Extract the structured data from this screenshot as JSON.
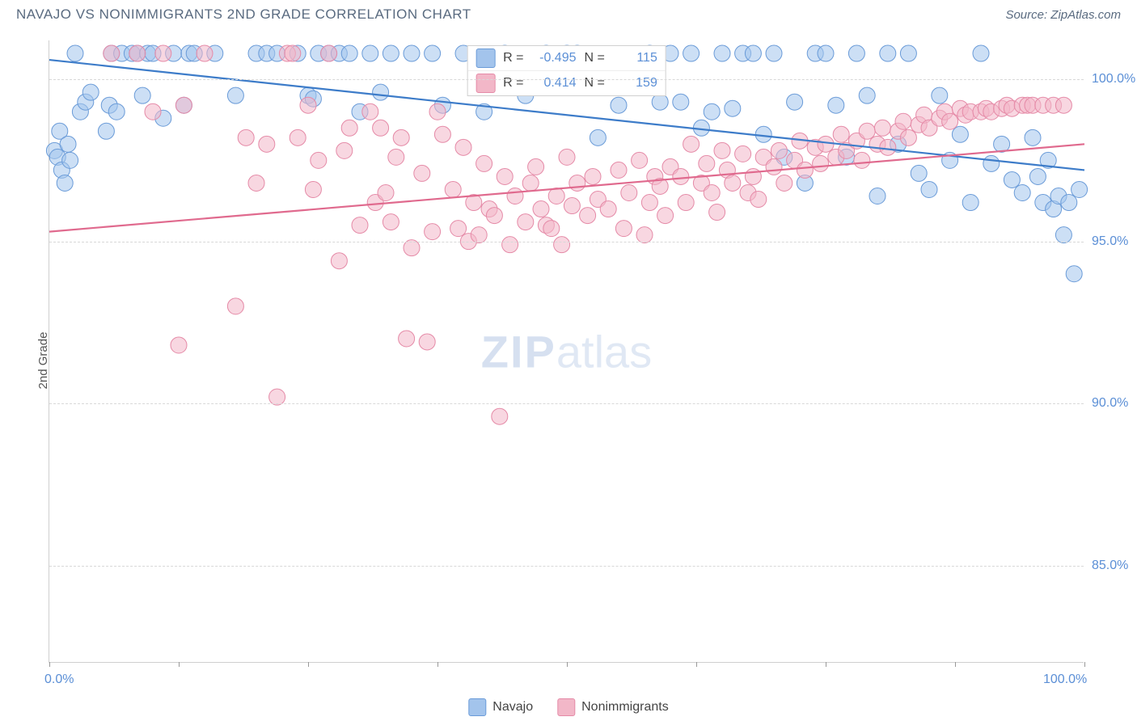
{
  "title": "NAVAJO VS NONIMMIGRANTS 2ND GRADE CORRELATION CHART",
  "source_label": "Source: ZipAtlas.com",
  "ylabel": "2nd Grade",
  "watermark_zip": "ZIP",
  "watermark_atlas": "atlas",
  "xlim": [
    0,
    100
  ],
  "xlim_labels": [
    "0.0%",
    "100.0%"
  ],
  "ylim": [
    82,
    101.2
  ],
  "yticks": [
    85,
    90,
    95,
    100
  ],
  "ytick_labels": [
    "85.0%",
    "90.0%",
    "95.0%",
    "100.0%"
  ],
  "xtick_positions": [
    0,
    12.5,
    25,
    37.5,
    50,
    62.5,
    75,
    87.5,
    100
  ],
  "grid_color": "#d8d8d8",
  "axis_color": "#cfcfcf",
  "background_color": "#ffffff",
  "marker_radius": 10,
  "marker_opacity": 0.55,
  "line_width": 2.2,
  "series": [
    {
      "name": "Navajo",
      "color_fill": "#a3c4ec",
      "color_stroke": "#6a9bd8",
      "color_line": "#3d7cc9",
      "R": "-0.495",
      "N": "115",
      "trend": {
        "x1": 0,
        "y1": 100.6,
        "x2": 100,
        "y2": 97.2
      },
      "points": [
        [
          0.5,
          97.8
        ],
        [
          0.8,
          97.6
        ],
        [
          1.0,
          98.4
        ],
        [
          1.2,
          97.2
        ],
        [
          1.5,
          96.8
        ],
        [
          1.8,
          98.0
        ],
        [
          2.0,
          97.5
        ],
        [
          2.5,
          100.8
        ],
        [
          3.0,
          99.0
        ],
        [
          3.5,
          99.3
        ],
        [
          4.0,
          99.6
        ],
        [
          5.5,
          98.4
        ],
        [
          5.8,
          99.2
        ],
        [
          6.0,
          100.8
        ],
        [
          6.5,
          99.0
        ],
        [
          7.0,
          100.8
        ],
        [
          8.0,
          100.8
        ],
        [
          8.5,
          100.8
        ],
        [
          9.0,
          99.5
        ],
        [
          9.5,
          100.8
        ],
        [
          10.0,
          100.8
        ],
        [
          11.0,
          98.8
        ],
        [
          12.0,
          100.8
        ],
        [
          13.0,
          99.2
        ],
        [
          13.5,
          100.8
        ],
        [
          14.0,
          100.8
        ],
        [
          16.0,
          100.8
        ],
        [
          18.0,
          99.5
        ],
        [
          20.0,
          100.8
        ],
        [
          21.0,
          100.8
        ],
        [
          22.0,
          100.8
        ],
        [
          24.0,
          100.8
        ],
        [
          25.0,
          99.5
        ],
        [
          25.5,
          99.4
        ],
        [
          26.0,
          100.8
        ],
        [
          27.0,
          100.8
        ],
        [
          28.0,
          100.8
        ],
        [
          29.0,
          100.8
        ],
        [
          30.0,
          99.0
        ],
        [
          31.0,
          100.8
        ],
        [
          32.0,
          99.6
        ],
        [
          33.0,
          100.8
        ],
        [
          35.0,
          100.8
        ],
        [
          37.0,
          100.8
        ],
        [
          38.0,
          99.2
        ],
        [
          40.0,
          100.8
        ],
        [
          42.0,
          99.0
        ],
        [
          44.0,
          100.8
        ],
        [
          46.0,
          99.5
        ],
        [
          48.0,
          100.8
        ],
        [
          50.0,
          100.8
        ],
        [
          51.0,
          100.8
        ],
        [
          53.0,
          98.2
        ],
        [
          55.0,
          99.2
        ],
        [
          58.0,
          100.8
        ],
        [
          59.0,
          99.3
        ],
        [
          60.0,
          100.8
        ],
        [
          61.0,
          99.3
        ],
        [
          62.0,
          100.8
        ],
        [
          63.0,
          98.5
        ],
        [
          64.0,
          99.0
        ],
        [
          65.0,
          100.8
        ],
        [
          66.0,
          99.1
        ],
        [
          67.0,
          100.8
        ],
        [
          68.0,
          100.8
        ],
        [
          69.0,
          98.3
        ],
        [
          70.0,
          100.8
        ],
        [
          71.0,
          97.6
        ],
        [
          72.0,
          99.3
        ],
        [
          73.0,
          96.8
        ],
        [
          74.0,
          100.8
        ],
        [
          75.0,
          100.8
        ],
        [
          76.0,
          99.2
        ],
        [
          77.0,
          97.6
        ],
        [
          78.0,
          100.8
        ],
        [
          79.0,
          99.5
        ],
        [
          80.0,
          96.4
        ],
        [
          81.0,
          100.8
        ],
        [
          82.0,
          98.0
        ],
        [
          83.0,
          100.8
        ],
        [
          84.0,
          97.1
        ],
        [
          85.0,
          96.6
        ],
        [
          86.0,
          99.5
        ],
        [
          87.0,
          97.5
        ],
        [
          88.0,
          98.3
        ],
        [
          89.0,
          96.2
        ],
        [
          90.0,
          100.8
        ],
        [
          91.0,
          97.4
        ],
        [
          92.0,
          98.0
        ],
        [
          93.0,
          96.9
        ],
        [
          94.0,
          96.5
        ],
        [
          95.0,
          98.2
        ],
        [
          95.5,
          97.0
        ],
        [
          96.0,
          96.2
        ],
        [
          96.5,
          97.5
        ],
        [
          97.0,
          96.0
        ],
        [
          97.5,
          96.4
        ],
        [
          98.0,
          95.2
        ],
        [
          98.5,
          96.2
        ],
        [
          99.0,
          94.0
        ],
        [
          99.5,
          96.6
        ]
      ]
    },
    {
      "name": "Nonimmigrants",
      "color_fill": "#f2b7c8",
      "color_stroke": "#e58aa7",
      "color_line": "#e06a8e",
      "R": "0.414",
      "N": "159",
      "trend": {
        "x1": 0,
        "y1": 95.3,
        "x2": 100,
        "y2": 98.0
      },
      "points": [
        [
          6.0,
          100.8
        ],
        [
          8.5,
          100.8
        ],
        [
          10.0,
          99.0
        ],
        [
          11.0,
          100.8
        ],
        [
          12.5,
          91.8
        ],
        [
          13.0,
          99.2
        ],
        [
          15.0,
          100.8
        ],
        [
          18.0,
          93.0
        ],
        [
          19.0,
          98.2
        ],
        [
          20.0,
          96.8
        ],
        [
          21.0,
          98.0
        ],
        [
          22.0,
          90.2
        ],
        [
          23.0,
          100.8
        ],
        [
          23.5,
          100.8
        ],
        [
          24.0,
          98.2
        ],
        [
          25.0,
          99.2
        ],
        [
          25.5,
          96.6
        ],
        [
          26.0,
          97.5
        ],
        [
          27.0,
          100.8
        ],
        [
          28.0,
          94.4
        ],
        [
          28.5,
          97.8
        ],
        [
          29.0,
          98.5
        ],
        [
          30.0,
          95.5
        ],
        [
          31.0,
          99.0
        ],
        [
          31.5,
          96.2
        ],
        [
          32.0,
          98.5
        ],
        [
          32.5,
          96.5
        ],
        [
          33.0,
          95.6
        ],
        [
          33.5,
          97.6
        ],
        [
          34.0,
          98.2
        ],
        [
          34.5,
          92.0
        ],
        [
          35.0,
          94.8
        ],
        [
          36.0,
          97.1
        ],
        [
          36.5,
          91.9
        ],
        [
          37.0,
          95.3
        ],
        [
          37.5,
          99.0
        ],
        [
          38.0,
          98.3
        ],
        [
          39.0,
          96.6
        ],
        [
          39.5,
          95.4
        ],
        [
          40.0,
          97.9
        ],
        [
          40.5,
          95.0
        ],
        [
          41.0,
          96.2
        ],
        [
          41.5,
          95.2
        ],
        [
          42.0,
          97.4
        ],
        [
          42.5,
          96.0
        ],
        [
          43.0,
          95.8
        ],
        [
          43.5,
          89.6
        ],
        [
          44.0,
          97.0
        ],
        [
          44.5,
          94.9
        ],
        [
          45.0,
          96.4
        ],
        [
          46.0,
          95.6
        ],
        [
          46.5,
          96.8
        ],
        [
          47.0,
          97.3
        ],
        [
          47.5,
          96.0
        ],
        [
          48.0,
          95.5
        ],
        [
          48.5,
          95.4
        ],
        [
          49.0,
          96.4
        ],
        [
          49.5,
          94.9
        ],
        [
          50.0,
          97.6
        ],
        [
          50.5,
          96.1
        ],
        [
          51.0,
          96.8
        ],
        [
          52.0,
          95.8
        ],
        [
          52.5,
          97.0
        ],
        [
          53.0,
          96.3
        ],
        [
          54.0,
          96.0
        ],
        [
          55.0,
          97.2
        ],
        [
          55.5,
          95.4
        ],
        [
          56.0,
          96.5
        ],
        [
          57.0,
          97.5
        ],
        [
          57.5,
          95.2
        ],
        [
          58.0,
          96.2
        ],
        [
          58.5,
          97.0
        ],
        [
          59.0,
          96.7
        ],
        [
          59.5,
          95.8
        ],
        [
          60.0,
          97.3
        ],
        [
          61.0,
          97.0
        ],
        [
          61.5,
          96.2
        ],
        [
          62.0,
          98.0
        ],
        [
          63.0,
          96.8
        ],
        [
          63.5,
          97.4
        ],
        [
          64.0,
          96.5
        ],
        [
          64.5,
          95.9
        ],
        [
          65.0,
          97.8
        ],
        [
          65.5,
          97.2
        ],
        [
          66.0,
          96.8
        ],
        [
          67.0,
          97.7
        ],
        [
          67.5,
          96.5
        ],
        [
          68.0,
          97.0
        ],
        [
          68.5,
          96.3
        ],
        [
          69.0,
          97.6
        ],
        [
          70.0,
          97.3
        ],
        [
          70.5,
          97.8
        ],
        [
          71.0,
          96.8
        ],
        [
          72.0,
          97.5
        ],
        [
          72.5,
          98.1
        ],
        [
          73.0,
          97.2
        ],
        [
          74.0,
          97.9
        ],
        [
          74.5,
          97.4
        ],
        [
          75.0,
          98.0
        ],
        [
          76.0,
          97.6
        ],
        [
          76.5,
          98.3
        ],
        [
          77.0,
          97.8
        ],
        [
          78.0,
          98.1
        ],
        [
          78.5,
          97.5
        ],
        [
          79.0,
          98.4
        ],
        [
          80.0,
          98.0
        ],
        [
          80.5,
          98.5
        ],
        [
          81.0,
          97.9
        ],
        [
          82.0,
          98.4
        ],
        [
          82.5,
          98.7
        ],
        [
          83.0,
          98.2
        ],
        [
          84.0,
          98.6
        ],
        [
          84.5,
          98.9
        ],
        [
          85.0,
          98.5
        ],
        [
          86.0,
          98.8
        ],
        [
          86.5,
          99.0
        ],
        [
          87.0,
          98.7
        ],
        [
          88.0,
          99.1
        ],
        [
          88.5,
          98.9
        ],
        [
          89.0,
          99.0
        ],
        [
          90.0,
          99.0
        ],
        [
          90.5,
          99.1
        ],
        [
          91.0,
          99.0
        ],
        [
          92.0,
          99.1
        ],
        [
          92.5,
          99.2
        ],
        [
          93.0,
          99.1
        ],
        [
          94.0,
          99.2
        ],
        [
          94.5,
          99.2
        ],
        [
          95.0,
          99.2
        ],
        [
          96.0,
          99.2
        ],
        [
          97.0,
          99.2
        ],
        [
          98.0,
          99.2
        ]
      ]
    }
  ],
  "legend_items": [
    {
      "label": "Navajo",
      "fill": "#a3c4ec",
      "stroke": "#6a9bd8"
    },
    {
      "label": "Nonimmigrants",
      "fill": "#f2b7c8",
      "stroke": "#e58aa7"
    }
  ],
  "stats_label_R": "R =",
  "stats_label_N": "N ="
}
